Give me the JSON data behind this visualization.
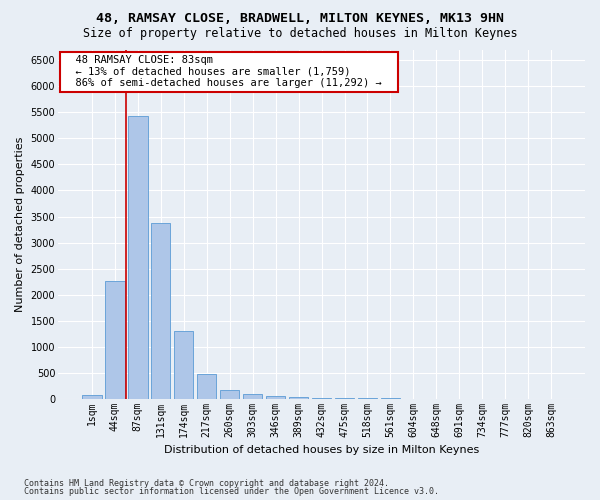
{
  "title": "48, RAMSAY CLOSE, BRADWELL, MILTON KEYNES, MK13 9HN",
  "subtitle": "Size of property relative to detached houses in Milton Keynes",
  "xlabel": "Distribution of detached houses by size in Milton Keynes",
  "ylabel": "Number of detached properties",
  "footnote1": "Contains HM Land Registry data © Crown copyright and database right 2024.",
  "footnote2": "Contains public sector information licensed under the Open Government Licence v3.0.",
  "annotation_title": "48 RAMSAY CLOSE: 83sqm",
  "annotation_line1": "← 13% of detached houses are smaller (1,759)",
  "annotation_line2": "86% of semi-detached houses are larger (11,292) →",
  "bar_labels": [
    "1sqm",
    "44sqm",
    "87sqm",
    "131sqm",
    "174sqm",
    "217sqm",
    "260sqm",
    "303sqm",
    "346sqm",
    "389sqm",
    "432sqm",
    "475sqm",
    "518sqm",
    "561sqm",
    "604sqm",
    "648sqm",
    "691sqm",
    "734sqm",
    "777sqm",
    "820sqm",
    "863sqm"
  ],
  "bar_values": [
    70,
    2270,
    5430,
    3380,
    1300,
    480,
    160,
    90,
    60,
    40,
    20,
    10,
    5,
    3,
    2,
    1,
    1,
    0,
    0,
    0,
    0
  ],
  "bar_color": "#aec6e8",
  "bar_edge_color": "#5b9bd5",
  "ylim": [
    0,
    6700
  ],
  "yticks": [
    0,
    500,
    1000,
    1500,
    2000,
    2500,
    3000,
    3500,
    4000,
    4500,
    5000,
    5500,
    6000,
    6500
  ],
  "bg_color": "#e8eef5",
  "plot_bg_color": "#e8eef5",
  "grid_color": "#ffffff",
  "annotation_box_color": "#ffffff",
  "annotation_box_edge": "#cc0000",
  "red_line_color": "#cc0000",
  "title_fontsize": 9.5,
  "subtitle_fontsize": 8.5,
  "axis_label_fontsize": 8,
  "tick_fontsize": 7,
  "annotation_fontsize": 7.5
}
